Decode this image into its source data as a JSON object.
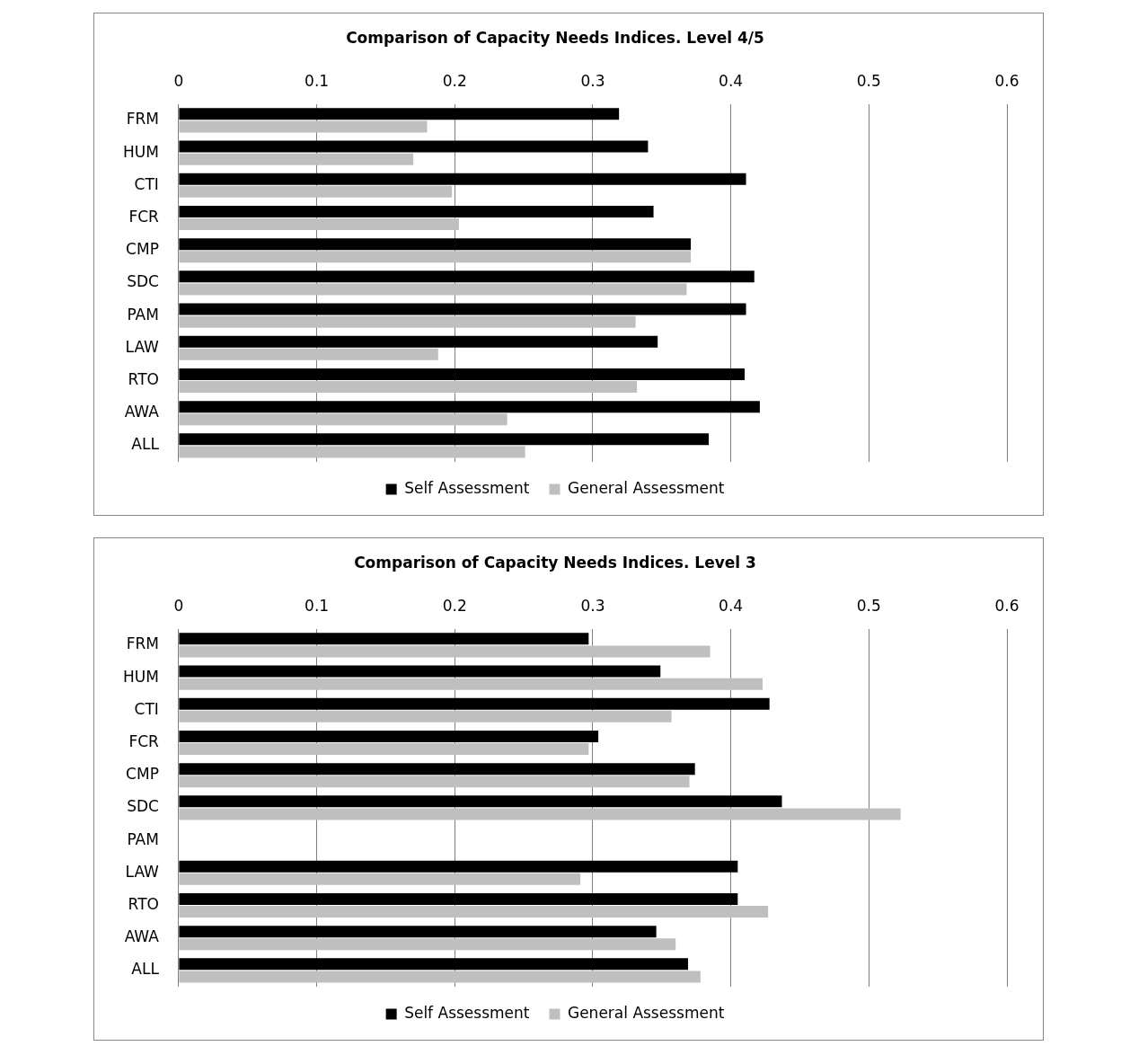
{
  "chart_data": [
    {
      "type": "bar",
      "orientation": "horizontal",
      "title": "Comparison of Capacity Needs Indices. Level 4/5",
      "categories": [
        "FRM",
        "HUM",
        "CTI",
        "FCR",
        "CMP",
        "SDC",
        "PAM",
        "LAW",
        "RTO",
        "AWA",
        "ALL"
      ],
      "series": [
        {
          "name": "Self Assessment",
          "color": "#000000",
          "values": [
            0.319,
            0.34,
            0.411,
            0.344,
            0.371,
            0.417,
            0.411,
            0.347,
            0.41,
            0.421,
            0.384
          ]
        },
        {
          "name": "General Assessment",
          "color": "#bfbfbf",
          "values": [
            0.18,
            0.17,
            0.198,
            0.203,
            0.371,
            0.368,
            0.331,
            0.188,
            0.332,
            0.238,
            0.251
          ]
        }
      ],
      "xlim": [
        0,
        0.6
      ],
      "xticks": [
        0,
        0.1,
        0.2,
        0.3,
        0.4,
        0.5,
        0.6
      ],
      "grid": "x",
      "legend": "bottom"
    },
    {
      "type": "bar",
      "orientation": "horizontal",
      "title": "Comparison of Capacity Needs Indices. Level 3",
      "categories": [
        "FRM",
        "HUM",
        "CTI",
        "FCR",
        "CMP",
        "SDC",
        "PAM",
        "LAW",
        "RTO",
        "AWA",
        "ALL"
      ],
      "series": [
        {
          "name": "Self Assessment",
          "color": "#000000",
          "values": [
            0.297,
            0.349,
            0.428,
            0.304,
            0.374,
            0.437,
            null,
            0.405,
            0.405,
            0.346,
            0.369
          ]
        },
        {
          "name": "General Assessment",
          "color": "#bfbfbf",
          "values": [
            0.385,
            0.423,
            0.357,
            0.297,
            0.37,
            0.523,
            null,
            0.291,
            0.427,
            0.36,
            0.378
          ]
        }
      ],
      "xlim": [
        0,
        0.6
      ],
      "xticks": [
        0,
        0.1,
        0.2,
        0.3,
        0.4,
        0.5,
        0.6
      ],
      "grid": "x",
      "legend": "bottom"
    }
  ]
}
